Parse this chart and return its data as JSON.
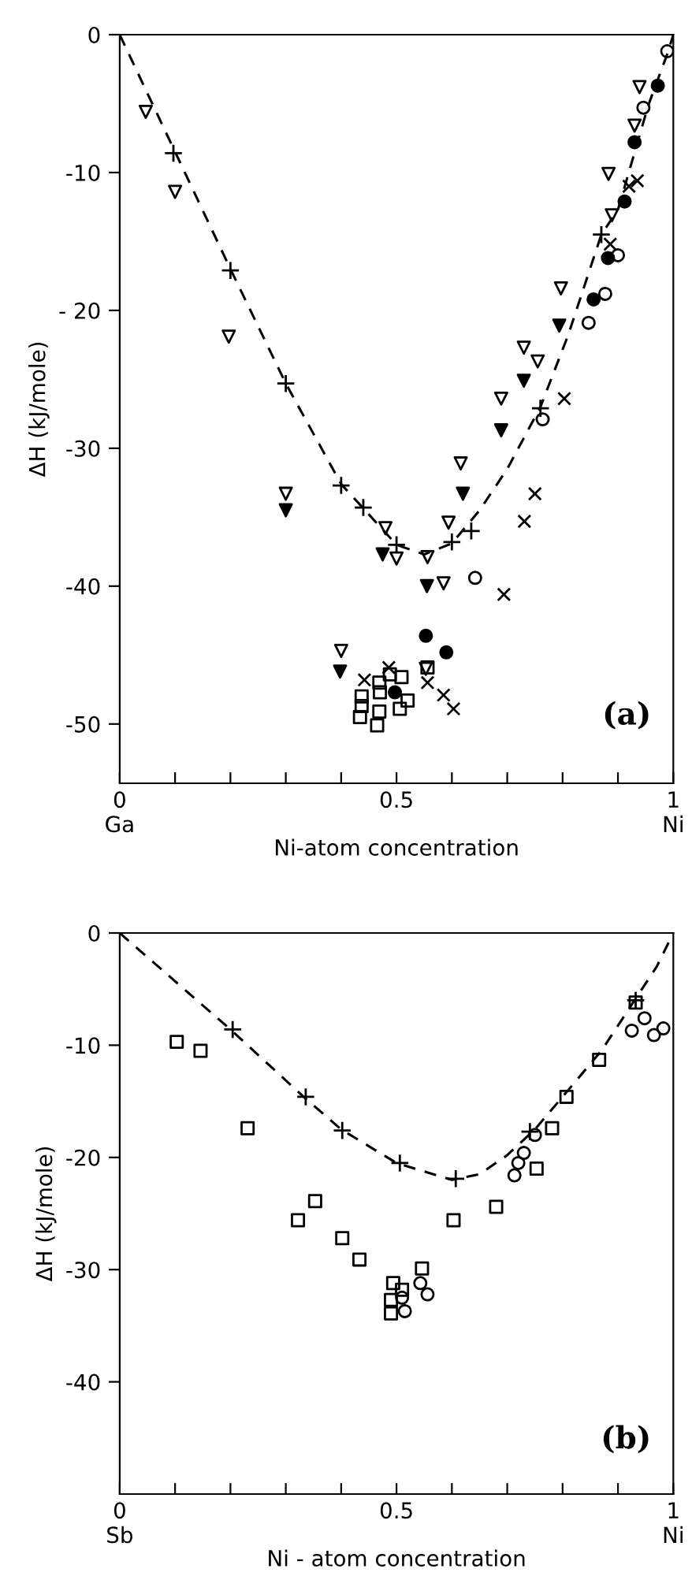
{
  "chart_data": [
    {
      "type": "scatter",
      "xlabel": "Ni-atom concentration",
      "ylabel": "ΔH (kJ/mole)",
      "annotations": [
        "(a)"
      ],
      "xlim": [
        0,
        1
      ],
      "ylim": [
        -54.3,
        0
      ],
      "xticks": [
        {
          "value": 0,
          "label": "0\nGa"
        },
        {
          "value": 0.1,
          "label": null
        },
        {
          "value": 0.2,
          "label": null
        },
        {
          "value": 0.3,
          "label": null
        },
        {
          "value": 0.4,
          "label": null
        },
        {
          "value": 0.5,
          "label": "0.5"
        },
        {
          "value": 0.6,
          "label": null
        },
        {
          "value": 0.7,
          "label": null
        },
        {
          "value": 0.8,
          "label": null
        },
        {
          "value": 0.9,
          "label": null
        },
        {
          "value": 1,
          "label": "1\nNi"
        }
      ],
      "yticks": [
        {
          "value": 0,
          "label": "0"
        },
        {
          "value": -10,
          "label": "-10"
        },
        {
          "value": -20,
          "label": "- 20"
        },
        {
          "value": -30,
          "label": "-30"
        },
        {
          "value": -40,
          "label": "-40"
        },
        {
          "value": -50,
          "label": "-50"
        }
      ],
      "grid": false,
      "legend": false,
      "series": [
        {
          "type": "line",
          "line_style": "dashed",
          "marker": "none",
          "color": "#000000",
          "x": [
            0,
            0.1,
            0.2,
            0.3,
            0.4,
            0.5,
            0.55,
            0.6,
            0.65,
            0.7,
            0.76,
            0.81,
            0.87,
            0.9,
            0.955,
            0.99,
            1
          ],
          "values": [
            0,
            -8.5,
            -17,
            -25.3,
            -32.6,
            -37,
            -37.7,
            -36.9,
            -34.5,
            -31.5,
            -27,
            -21.8,
            -14.5,
            -12.7,
            -5.1,
            -1.3,
            0
          ]
        },
        {
          "marker": "plus",
          "color": "#000000",
          "x": [
            0.097,
            0.2,
            0.3,
            0.4,
            0.44,
            0.5,
            0.6,
            0.635,
            0.76,
            0.87
          ],
          "values": [
            -8.6,
            -17.1,
            -25.3,
            -32.7,
            -34.3,
            -37.0,
            -36.8,
            -36.0,
            -27.1,
            -14.5
          ]
        },
        {
          "marker": "triangle_down_open",
          "color": "#000000",
          "x": [
            0.047,
            0.1,
            0.197,
            0.3,
            0.48,
            0.5,
            0.556,
            0.585,
            0.594,
            0.616,
            0.689,
            0.73,
            0.755,
            0.797,
            0.883,
            0.889,
            0.93,
            0.939,
            0.4,
            0.553
          ],
          "values": [
            -5.6,
            -11.4,
            -21.9,
            -33.3,
            -35.8,
            -38.0,
            -37.9,
            -39.8,
            -35.4,
            -31.1,
            -26.4,
            -22.7,
            -23.7,
            -18.4,
            -10.1,
            -13.1,
            -6.6,
            -3.8,
            -44.7,
            -46.0
          ]
        },
        {
          "marker": "triangle_down",
          "color": "#000000",
          "x": [
            0.3,
            0.475,
            0.555,
            0.62,
            0.689,
            0.73,
            0.794,
            0.398
          ],
          "values": [
            -34.5,
            -37.7,
            -40.0,
            -33.3,
            -28.7,
            -25.1,
            -21.1,
            -46.2
          ]
        },
        {
          "marker": "circle",
          "color": "#000000",
          "x": [
            0.972,
            0.93,
            0.912,
            0.882,
            0.856,
            0.553,
            0.59,
            0.497
          ],
          "values": [
            -3.7,
            -7.8,
            -12.1,
            -16.2,
            -19.2,
            -43.6,
            -44.8,
            -47.7
          ]
        },
        {
          "marker": "circle_open",
          "color": "#000000",
          "x": [
            0.989,
            0.946,
            0.9,
            0.877,
            0.847,
            0.764,
            0.642
          ],
          "values": [
            -1.2,
            -5.3,
            -16.0,
            -18.8,
            -20.9,
            -27.9,
            -39.4
          ]
        },
        {
          "marker": "x",
          "color": "#000000",
          "x": [
            0.803,
            0.75,
            0.731,
            0.694,
            0.935,
            0.92,
            0.886,
            0.442,
            0.486,
            0.556,
            0.585,
            0.603
          ],
          "values": [
            -26.4,
            -33.3,
            -35.3,
            -40.6,
            -10.6,
            -11.0,
            -15.2,
            -46.8,
            -45.9,
            -47.0,
            -47.9,
            -48.9
          ]
        },
        {
          "marker": "square_open",
          "color": "#000000",
          "x": [
            0.437,
            0.437,
            0.434,
            0.465,
            0.469,
            0.469,
            0.47,
            0.488,
            0.509,
            0.506,
            0.52,
            0.556
          ],
          "values": [
            -48.0,
            -48.7,
            -49.5,
            -50.1,
            -49.1,
            -47.0,
            -47.7,
            -46.4,
            -46.6,
            -48.9,
            -48.3,
            -45.9
          ]
        }
      ]
    },
    {
      "type": "scatter",
      "xlabel": "Ni - atom concentration",
      "ylabel": "ΔH (kJ/mole)",
      "annotations": [
        "(b)"
      ],
      "xlim": [
        0,
        1
      ],
      "ylim": [
        -50,
        0
      ],
      "xticks": [
        {
          "value": 0,
          "label": "0\nSb"
        },
        {
          "value": 0.1,
          "label": null
        },
        {
          "value": 0.2,
          "label": null
        },
        {
          "value": 0.3,
          "label": null
        },
        {
          "value": 0.4,
          "label": null
        },
        {
          "value": 0.5,
          "label": "0.5"
        },
        {
          "value": 0.6,
          "label": null
        },
        {
          "value": 0.7,
          "label": null
        },
        {
          "value": 0.8,
          "label": null
        },
        {
          "value": 0.9,
          "label": null
        },
        {
          "value": 1,
          "label": "1\nNi"
        }
      ],
      "yticks": [
        {
          "value": 0,
          "label": "0"
        },
        {
          "value": -10,
          "label": "-10"
        },
        {
          "value": -20,
          "label": "-20"
        },
        {
          "value": -30,
          "label": "-30"
        },
        {
          "value": -40,
          "label": "-40"
        }
      ],
      "grid": false,
      "legend": false,
      "series": [
        {
          "type": "line",
          "line_style": "dashed",
          "marker": "none",
          "color": "#000000",
          "x": [
            0,
            0.2,
            0.33,
            0.4,
            0.5,
            0.6,
            0.65,
            0.7,
            0.75,
            0.8,
            0.87,
            0.93,
            0.97,
            1
          ],
          "values": [
            0,
            -8.6,
            -14.5,
            -17.5,
            -20.5,
            -22,
            -21.5,
            -19.8,
            -17.5,
            -14.6,
            -10.5,
            -6,
            -3,
            0
          ]
        },
        {
          "marker": "plus",
          "color": "#000000",
          "x": [
            0.204,
            0.336,
            0.402,
            0.506,
            0.607,
            0.741,
            0.932
          ],
          "values": [
            -8.6,
            -14.6,
            -17.6,
            -20.5,
            -21.9,
            -17.7,
            -6.0
          ]
        },
        {
          "marker": "square_open",
          "color": "#000000",
          "x": [
            0.103,
            0.146,
            0.231,
            0.322,
            0.353,
            0.402,
            0.433,
            0.603,
            0.68,
            0.781,
            0.753,
            0.866,
            0.807,
            0.546,
            0.494,
            0.51,
            0.49,
            0.49,
            0.932
          ],
          "values": [
            -9.7,
            -10.5,
            -17.4,
            -25.6,
            -23.9,
            -27.2,
            -29.1,
            -25.6,
            -24.4,
            -17.4,
            -21.0,
            -11.3,
            -14.6,
            -29.9,
            -31.2,
            -31.8,
            -32.7,
            -33.9,
            -6.2
          ]
        },
        {
          "marker": "circle_open",
          "color": "#000000",
          "x": [
            0.713,
            0.72,
            0.73,
            0.75,
            0.925,
            0.948,
            0.965,
            0.982,
            0.515,
            0.556,
            0.543,
            0.51
          ],
          "values": [
            -21.6,
            -20.5,
            -19.6,
            -18.0,
            -8.7,
            -7.6,
            -9.1,
            -8.5,
            -33.7,
            -32.2,
            -31.2,
            -32.5
          ]
        }
      ]
    }
  ]
}
